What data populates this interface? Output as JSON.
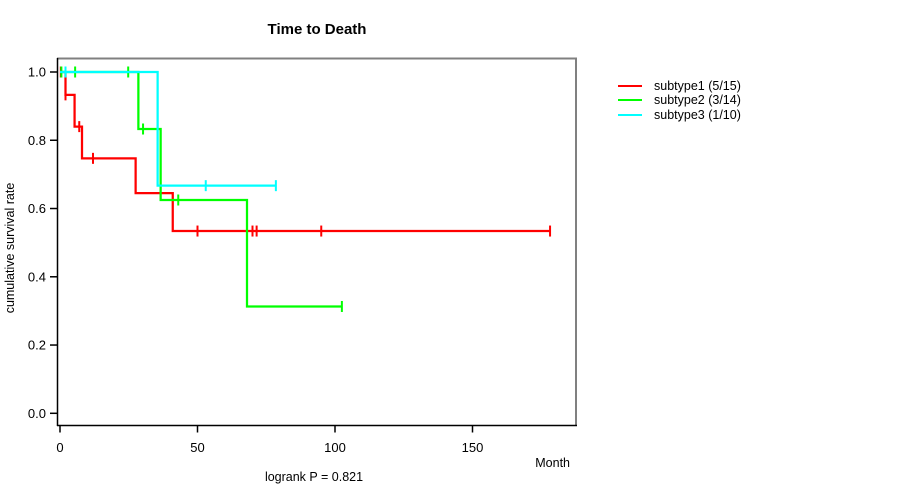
{
  "page": {
    "background": "#ffffff"
  },
  "chart_data": {
    "type": "line",
    "subtype": "kaplan-meier-step",
    "title": "Time to Death",
    "xlabel": "Month",
    "ylabel": "cumulative survival rate",
    "footer": "logrank P = 0.821",
    "xticks": [
      0,
      50,
      100,
      150
    ],
    "yticks": [
      0.0,
      0.2,
      0.4,
      0.6,
      0.8,
      1.0
    ],
    "xlim": [
      0,
      185
    ],
    "ylim": [
      0,
      1
    ],
    "grid": false,
    "legend_position": "right-outside",
    "axis_color": "#000000",
    "frame_color": "#808080",
    "series": [
      {
        "id": "subtype1",
        "name": "subtype1 (5/15)",
        "color": "#ff0000",
        "steps": [
          [
            0,
            1.0
          ],
          [
            2,
            0.933
          ],
          [
            5.3,
            0.84
          ],
          [
            8,
            0.747
          ],
          [
            27.5,
            0.645
          ],
          [
            41,
            0.534
          ],
          [
            178.2,
            0.534
          ]
        ],
        "censors": [
          [
            0.3,
            1.0
          ],
          [
            2,
            0.933
          ],
          [
            7,
            0.84
          ],
          [
            12,
            0.747
          ],
          [
            50,
            0.534
          ],
          [
            70,
            0.534
          ],
          [
            71.5,
            0.534
          ],
          [
            95,
            0.534
          ],
          [
            178.2,
            0.534
          ]
        ]
      },
      {
        "id": "subtype2",
        "name": "subtype2 (3/14)",
        "color": "#00ff00",
        "steps": [
          [
            0,
            1.0
          ],
          [
            28.5,
            0.833
          ],
          [
            36.6,
            0.625
          ],
          [
            68,
            0.313
          ],
          [
            102.5,
            0.313
          ]
        ],
        "censors": [
          [
            0.5,
            1.0
          ],
          [
            5.5,
            1.0
          ],
          [
            24.8,
            1.0
          ],
          [
            30.2,
            0.833
          ],
          [
            43,
            0.625
          ],
          [
            102.5,
            0.313
          ]
        ]
      },
      {
        "id": "subtype3",
        "name": "subtype3 (1/10)",
        "color": "#00ffff",
        "steps": [
          [
            0,
            1.0
          ],
          [
            35.5,
            0.667
          ],
          [
            78.5,
            0.667
          ]
        ],
        "censors": [
          [
            2,
            1.0
          ],
          [
            53,
            0.667
          ],
          [
            78.5,
            0.667
          ]
        ]
      }
    ]
  }
}
